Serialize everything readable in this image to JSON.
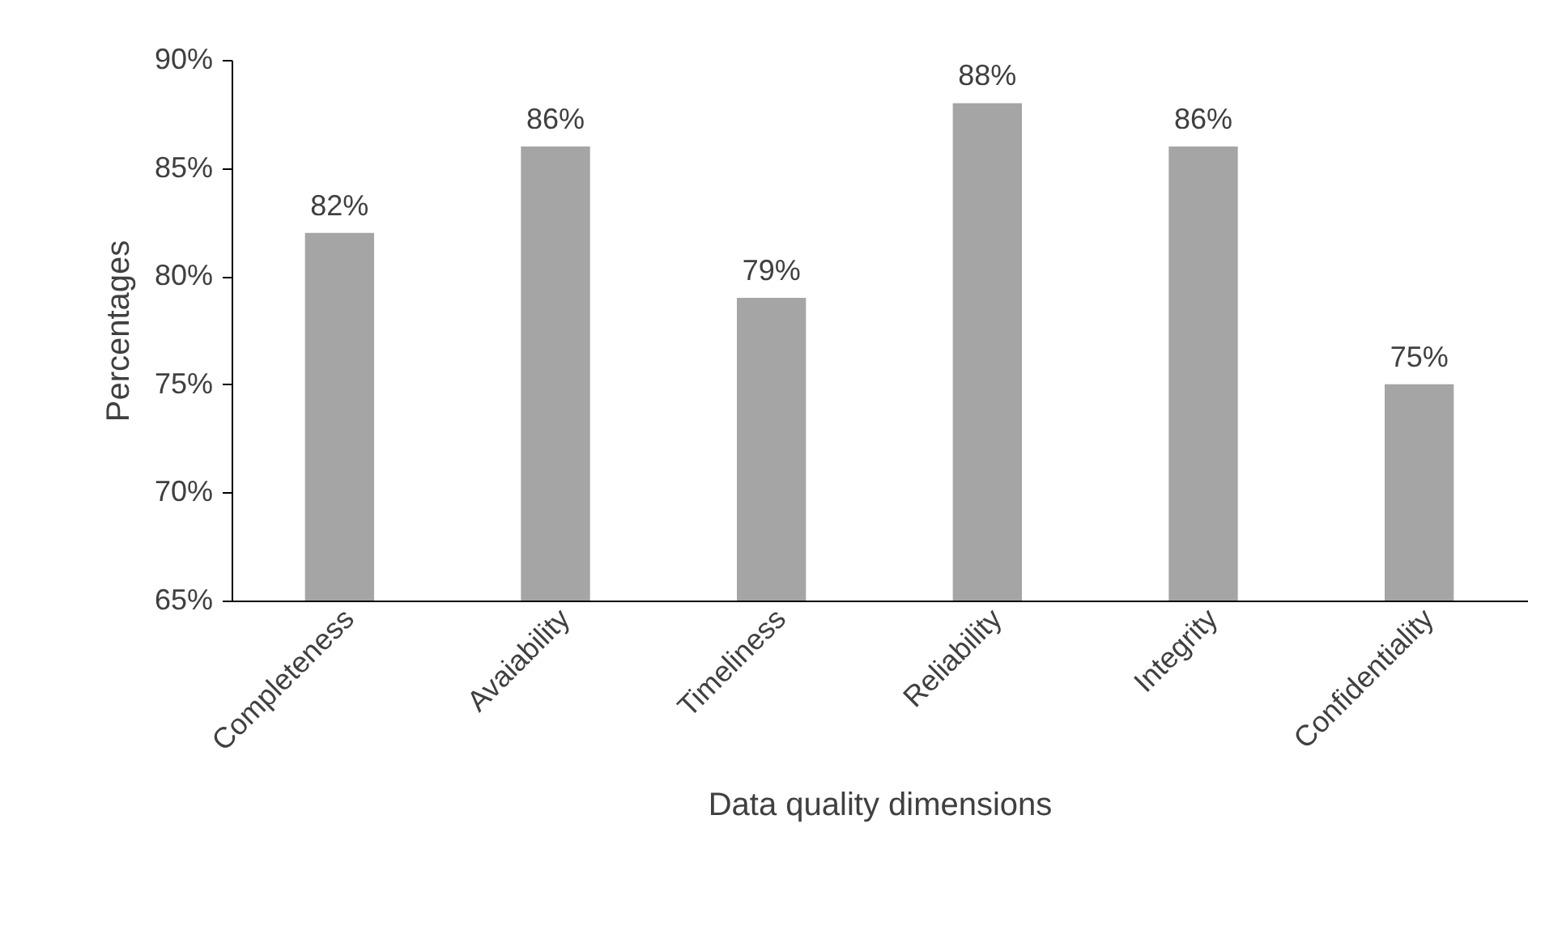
{
  "chart_data": {
    "type": "bar",
    "xlabel": "Data quality dimensions",
    "ylabel": "Percentages",
    "categories": [
      "Completeness",
      "Avaiability",
      "Timeliness",
      "Reliability",
      "Integrity",
      "Confidentiality"
    ],
    "values": [
      82,
      86,
      79,
      88,
      86,
      75
    ],
    "value_labels": [
      "82%",
      "86%",
      "79%",
      "88%",
      "86%",
      "75%"
    ],
    "color": "#a5a5a5",
    "ylim": [
      65,
      90
    ],
    "yticks": [
      {
        "value": 65,
        "label": "65%"
      },
      {
        "value": 70,
        "label": "70%"
      },
      {
        "value": 75,
        "label": "75%"
      },
      {
        "value": 80,
        "label": "80%"
      },
      {
        "value": 85,
        "label": "85%"
      },
      {
        "value": 90,
        "label": "90%"
      }
    ],
    "grid": false
  }
}
